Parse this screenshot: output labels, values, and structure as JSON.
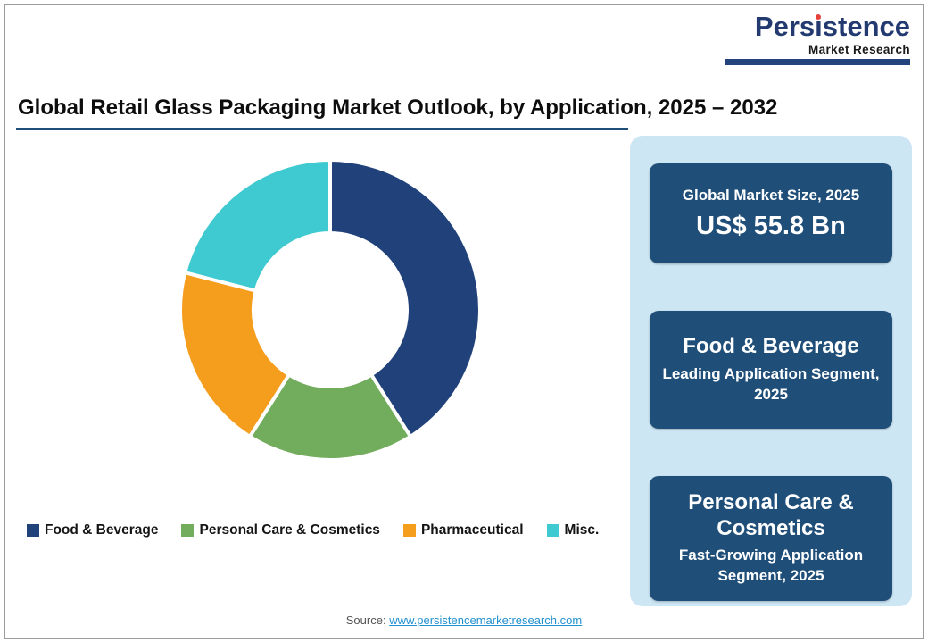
{
  "logo": {
    "part1": "Pers",
    "i": "i",
    "part2": "stence",
    "subtitle": "Market Research"
  },
  "title": "Global Retail Glass Packaging Market Outlook, by Application, 2025 – 2032",
  "chart_data": {
    "type": "pie",
    "donut": true,
    "title": "Global Retail Glass Packaging Market Outlook, by Application, 2025 – 2032",
    "start_angle_deg": 0,
    "direction": "clockwise",
    "inner_radius_ratio": 0.51,
    "legend_position": "bottom",
    "values_estimated": true,
    "segments": [
      {
        "label": "Food & Beverage",
        "value": 41,
        "color": "#21417a"
      },
      {
        "label": "Personal Care & Cosmetics",
        "value": 18,
        "color": "#72ac5d"
      },
      {
        "label": "Pharmaceutical",
        "value": 20,
        "color": "#f59d1d"
      },
      {
        "label": "Misc.",
        "value": 21,
        "color": "#3fc9d0"
      }
    ]
  },
  "panel": {
    "cards": [
      {
        "line1": "Global Market Size, 2025",
        "line2": "US$ 55.8 Bn"
      },
      {
        "line1": "Food & Beverage",
        "line2": "Leading Application Segment, 2025"
      },
      {
        "line1": "Personal Care & Cosmetics",
        "line2": "Fast-Growing Application Segment, 2025"
      }
    ]
  },
  "source": {
    "label": "Source: ",
    "link": "www.persistencemarketresearch.com"
  },
  "colors": {
    "navy_card": "#1f4e79",
    "navy_logo": "#233a70",
    "panel_bg": "#cce6f4",
    "title_rule": "#1f4e79",
    "logo_dot_red": "#e8413c",
    "link": "#2191ce",
    "frame_border": "#9c9c9c"
  }
}
